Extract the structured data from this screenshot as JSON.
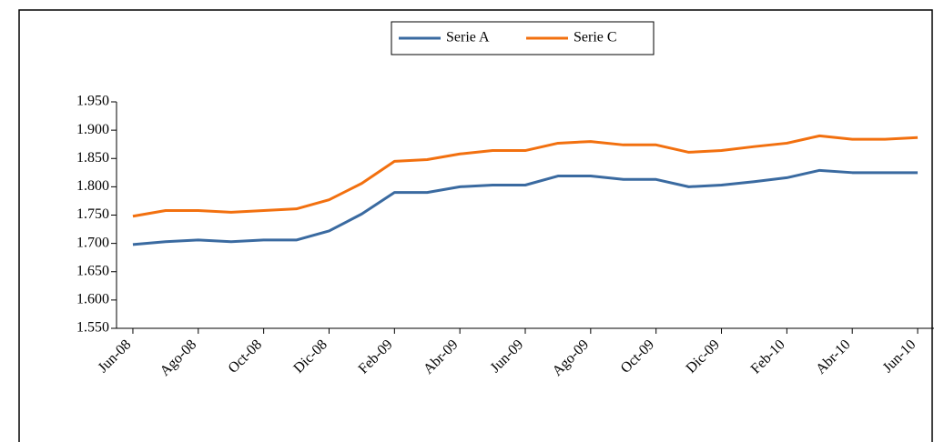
{
  "chart_data": {
    "type": "line",
    "categories": [
      "Jun-08",
      null,
      "Ago-08",
      null,
      "Oct-08",
      null,
      "Dic-08",
      null,
      "Feb-09",
      null,
      "Abr-09",
      null,
      "Jun-09",
      null,
      "Ago-09",
      null,
      "Oct-09",
      null,
      "Dic-09",
      null,
      "Feb-10",
      null,
      "Abr-10",
      null,
      "Jun-10"
    ],
    "series": [
      {
        "name": "Serie A",
        "color": "#3a6aa0",
        "values": [
          1698,
          1703,
          1706,
          1703,
          1706,
          1706,
          1722,
          1752,
          1790,
          1790,
          1800,
          1803,
          1803,
          1819,
          1819,
          1813,
          1813,
          1800,
          1803,
          1809,
          1816,
          1829,
          1825,
          1825,
          1825
        ]
      },
      {
        "name": "Serie C",
        "color": "#f2700f",
        "values": [
          1748,
          1758,
          1758,
          1755,
          1758,
          1761,
          1777,
          1806,
          1845,
          1848,
          1858,
          1864,
          1864,
          1877,
          1880,
          1874,
          1874,
          1861,
          1864,
          1871,
          1877,
          1890,
          1884,
          1884,
          1887
        ]
      }
    ],
    "ylim": [
      1550,
      1950
    ],
    "yticks": [
      {
        "value": 1550,
        "label": "1.550"
      },
      {
        "value": 1600,
        "label": "1.600"
      },
      {
        "value": 1650,
        "label": "1.650"
      },
      {
        "value": 1700,
        "label": "1.700"
      },
      {
        "value": 1750,
        "label": "1.750"
      },
      {
        "value": 1800,
        "label": "1.800"
      },
      {
        "value": 1850,
        "label": "1.850"
      },
      {
        "value": 1900,
        "label": "1.900"
      },
      {
        "value": 1950,
        "label": "1.950"
      }
    ],
    "legend": "top"
  }
}
